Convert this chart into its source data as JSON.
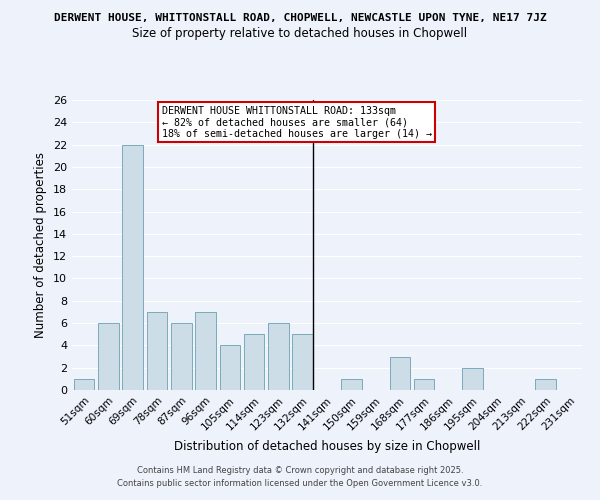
{
  "title_top": "DERWENT HOUSE, WHITTONSTALL ROAD, CHOPWELL, NEWCASTLE UPON TYNE, NE17 7JZ",
  "title_sub": "Size of property relative to detached houses in Chopwell",
  "xlabel": "Distribution of detached houses by size in Chopwell",
  "ylabel": "Number of detached properties",
  "bar_labels": [
    "51sqm",
    "60sqm",
    "69sqm",
    "78sqm",
    "87sqm",
    "96sqm",
    "105sqm",
    "114sqm",
    "123sqm",
    "132sqm",
    "141sqm",
    "150sqm",
    "159sqm",
    "168sqm",
    "177sqm",
    "186sqm",
    "195sqm",
    "204sqm",
    "213sqm",
    "222sqm",
    "231sqm"
  ],
  "bar_values": [
    1,
    6,
    22,
    7,
    6,
    7,
    4,
    5,
    6,
    5,
    0,
    1,
    0,
    3,
    1,
    0,
    2,
    0,
    0,
    1,
    0
  ],
  "bar_color": "#ccdde8",
  "bar_edge_color": "#7aaabb",
  "annotation_title": "DERWENT HOUSE WHITTONSTALL ROAD: 133sqm",
  "annotation_line1": "← 82% of detached houses are smaller (64)",
  "annotation_line2": "18% of semi-detached houses are larger (14) →",
  "annotation_box_color": "#ffffff",
  "annotation_border_color": "#cc0000",
  "ylim": [
    0,
    26
  ],
  "yticks": [
    0,
    2,
    4,
    6,
    8,
    10,
    12,
    14,
    16,
    18,
    20,
    22,
    24,
    26
  ],
  "footer_line1": "Contains HM Land Registry data © Crown copyright and database right 2025.",
  "footer_line2": "Contains public sector information licensed under the Open Government Licence v3.0.",
  "background_color": "#eef2fb",
  "grid_color": "#ffffff"
}
